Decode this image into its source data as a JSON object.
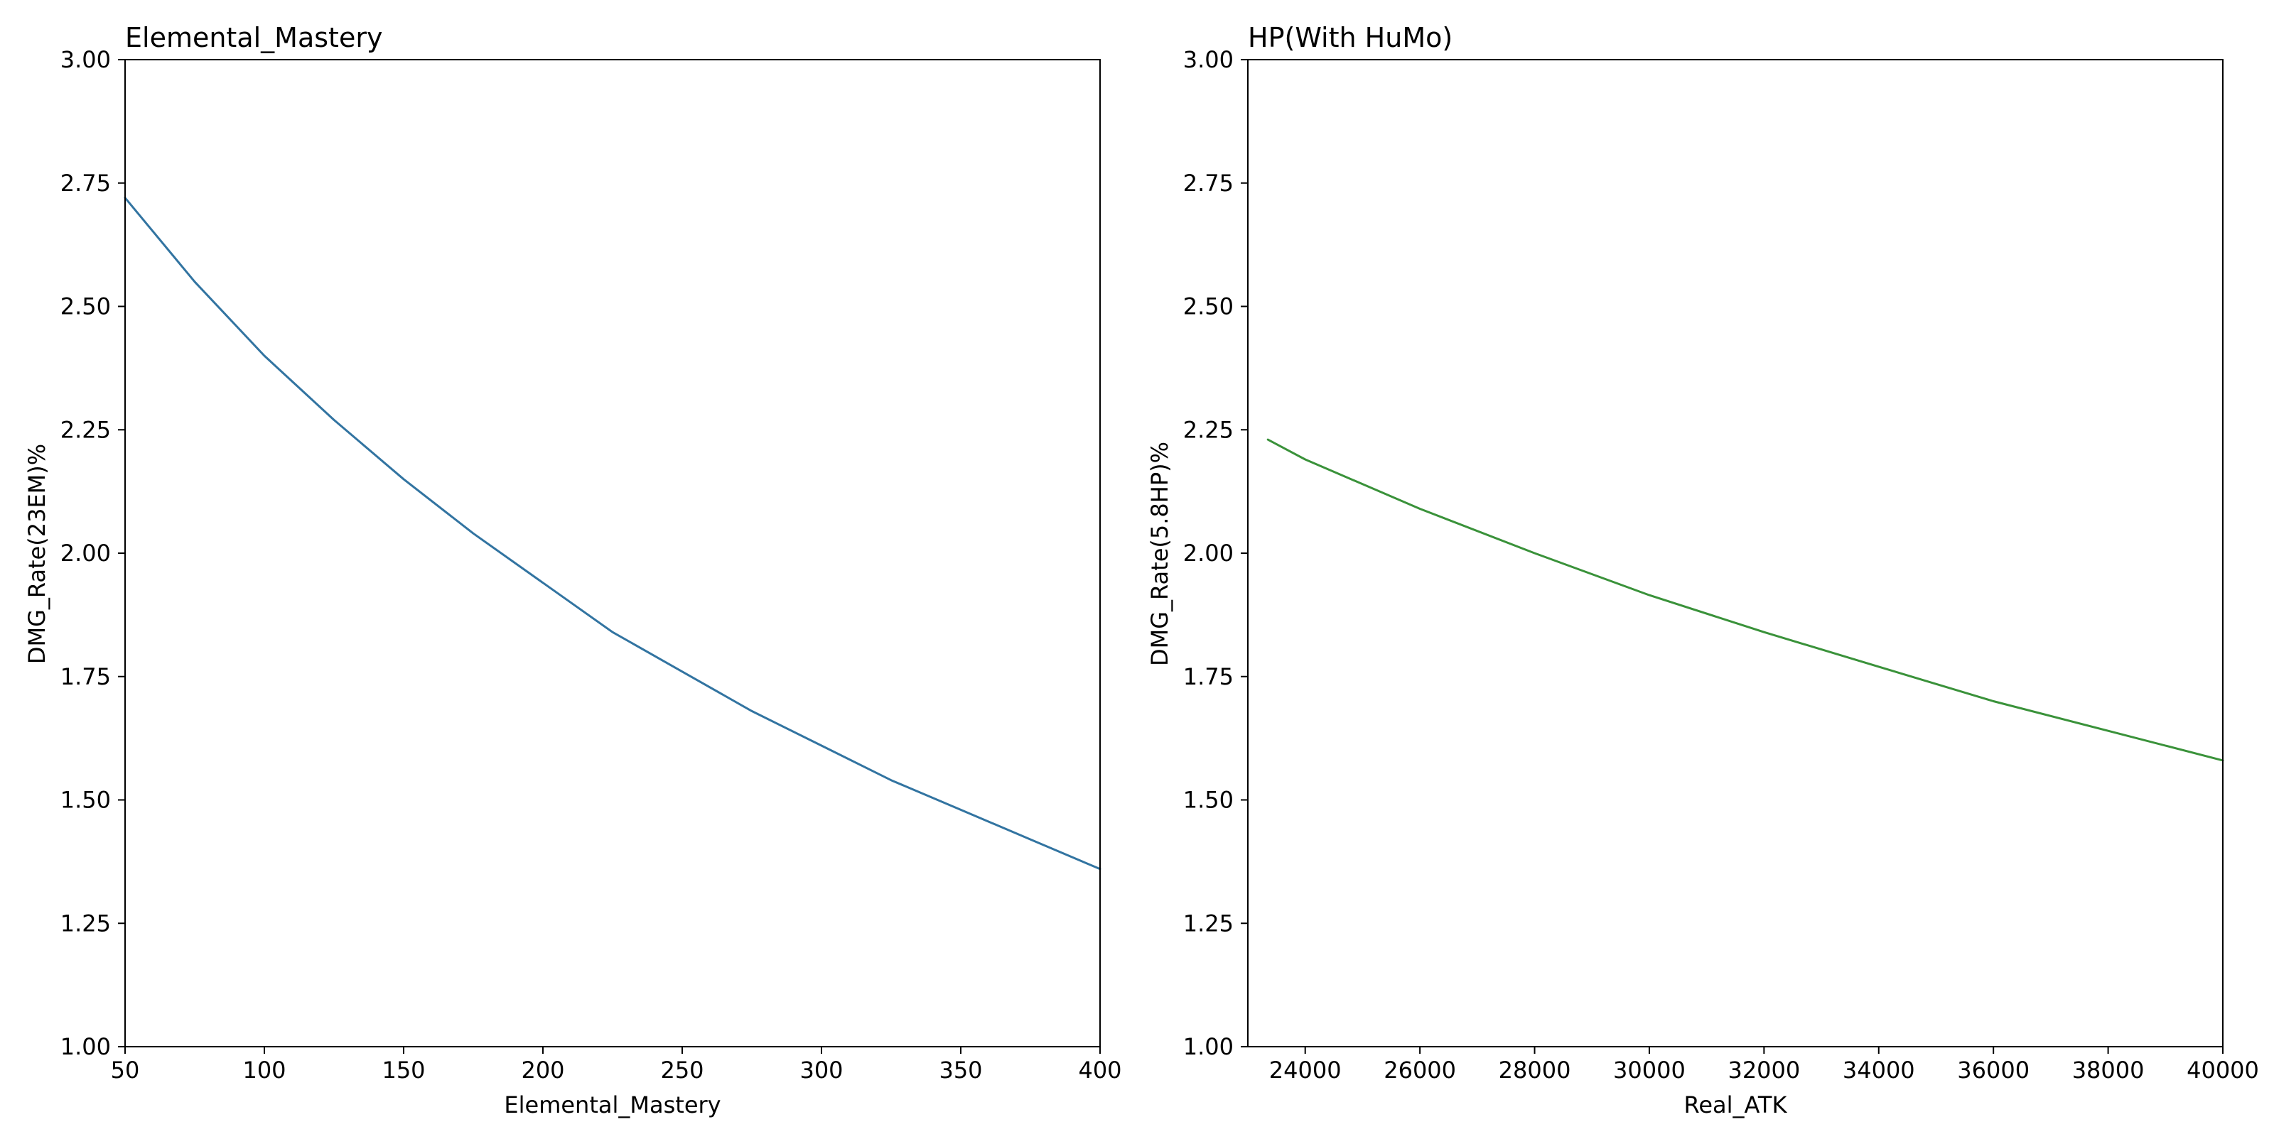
{
  "chart_data": [
    {
      "type": "line",
      "title": "Elemental_Mastery",
      "xlabel": "Elemental_Mastery",
      "ylabel": "DMG_Rate(23EM)%",
      "xlim": [
        50,
        400
      ],
      "ylim": [
        1.0,
        3.0
      ],
      "xticks": [
        50,
        100,
        150,
        200,
        250,
        300,
        350,
        400
      ],
      "yticks": [
        1.0,
        1.25,
        1.5,
        1.75,
        2.0,
        2.25,
        2.5,
        2.75,
        3.0
      ],
      "ytick_labels": [
        "1.00",
        "1.25",
        "1.50",
        "1.75",
        "2.00",
        "2.25",
        "2.50",
        "2.75",
        "3.00"
      ],
      "grid": false,
      "series": [
        {
          "color": "#3274a1",
          "x": [
            50,
            75,
            100,
            125,
            150,
            175,
            200,
            225,
            250,
            275,
            300,
            325,
            350,
            375,
            400
          ],
          "y": [
            2.72,
            2.55,
            2.4,
            2.27,
            2.15,
            2.04,
            1.94,
            1.84,
            1.76,
            1.68,
            1.61,
            1.54,
            1.48,
            1.42,
            1.36
          ]
        }
      ]
    },
    {
      "type": "line",
      "title": "HP(With HuMo)",
      "xlabel": "Real_ATK",
      "ylabel": "DMG_Rate(5.8HP)%",
      "xlim": [
        23000,
        40000
      ],
      "ylim": [
        1.0,
        3.0
      ],
      "xticks": [
        24000,
        26000,
        28000,
        30000,
        32000,
        34000,
        36000,
        38000,
        40000
      ],
      "yticks": [
        1.0,
        1.25,
        1.5,
        1.75,
        2.0,
        2.25,
        2.5,
        2.75,
        3.0
      ],
      "ytick_labels": [
        "1.00",
        "1.25",
        "1.50",
        "1.75",
        "2.00",
        "2.25",
        "2.50",
        "2.75",
        "3.00"
      ],
      "grid": false,
      "series": [
        {
          "color": "#3a923a",
          "x": [
            23350,
            24000,
            26000,
            28000,
            30000,
            32000,
            34000,
            36000,
            38000,
            40000
          ],
          "y": [
            2.23,
            2.19,
            2.09,
            2.0,
            1.915,
            1.84,
            1.77,
            1.7,
            1.64,
            1.58
          ]
        }
      ]
    }
  ]
}
